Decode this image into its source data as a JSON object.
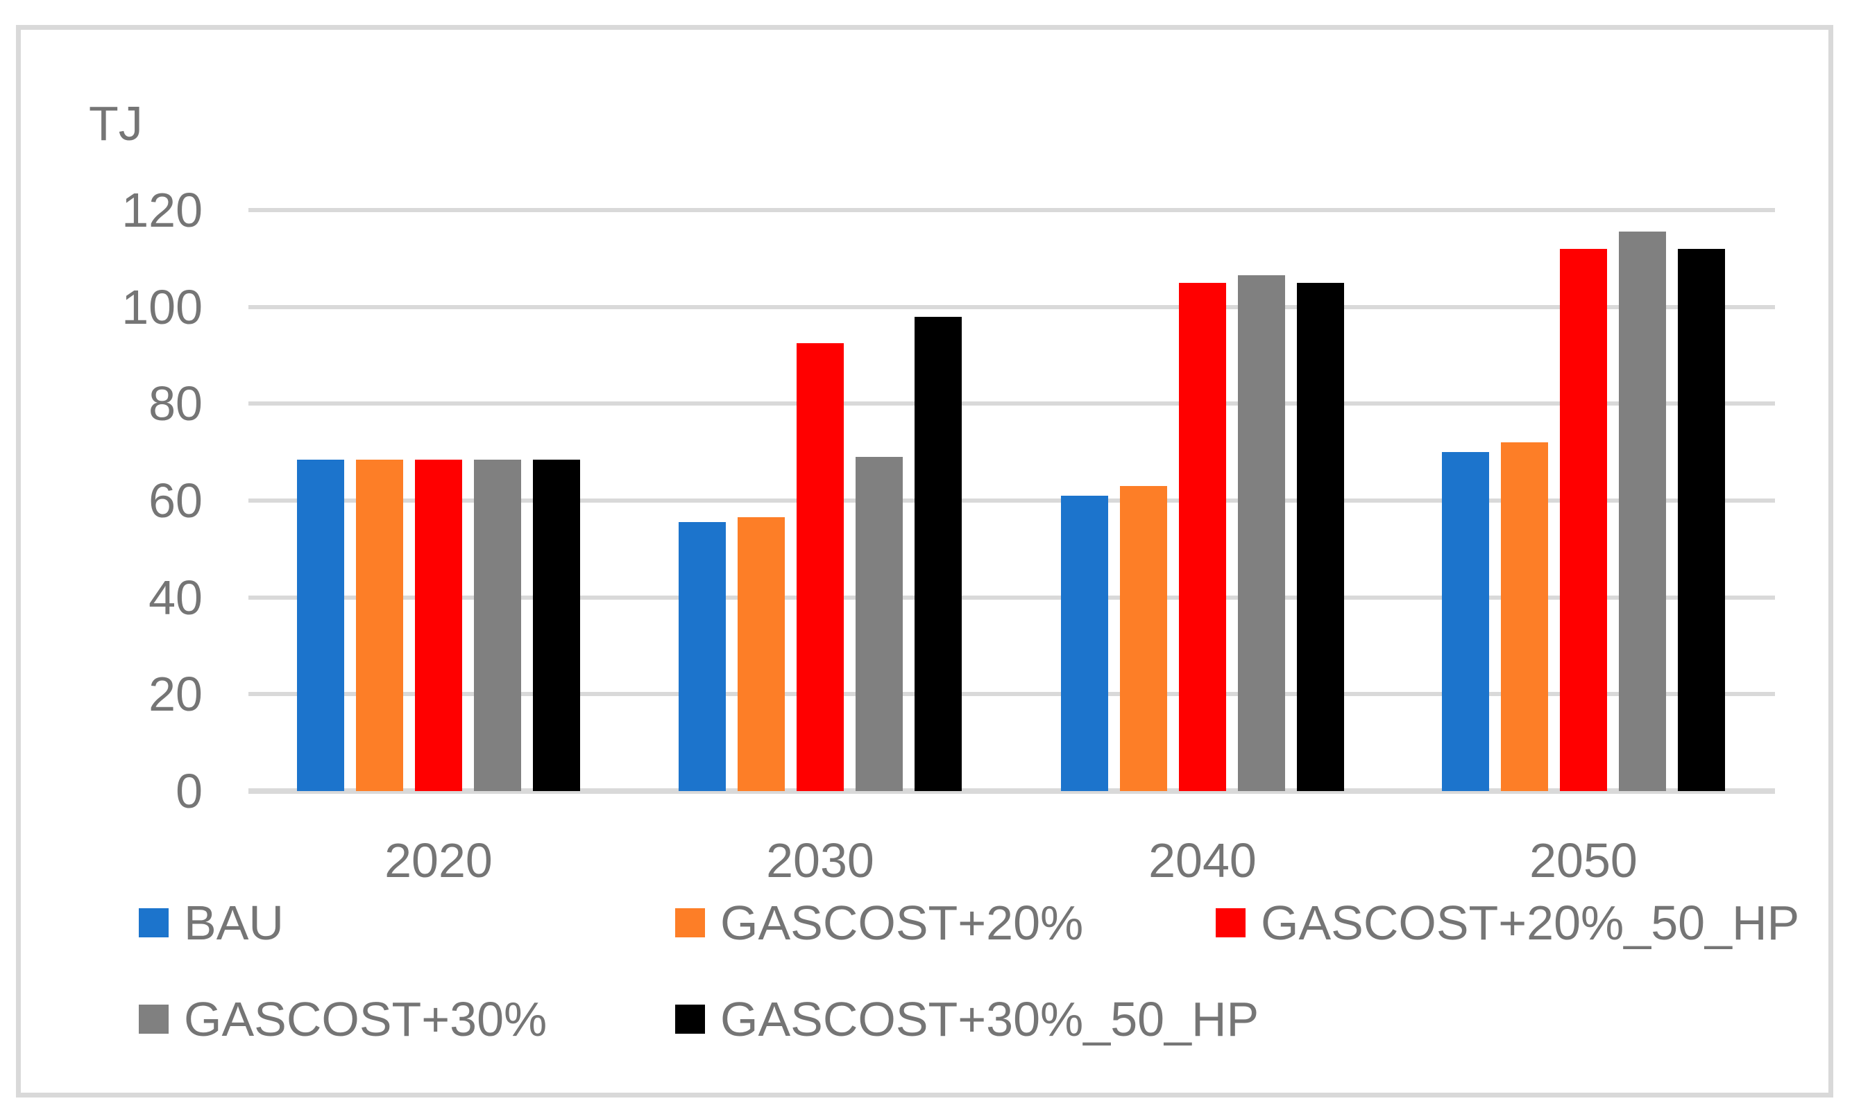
{
  "chart_data": {
    "type": "bar",
    "title": "",
    "ylabel": "TJ",
    "xlabel": "",
    "categories": [
      "2020",
      "2030",
      "2040",
      "2050"
    ],
    "series": [
      {
        "name": "BAU",
        "color": "#1C74CC",
        "values": [
          68.5,
          55.5,
          61,
          70
        ]
      },
      {
        "name": "GASCOST+20%",
        "color": "#FD7E27",
        "values": [
          68.5,
          56.5,
          63,
          72
        ]
      },
      {
        "name": "GASCOST+20%_50_HP",
        "color": "#FF0000",
        "values": [
          68.5,
          92.5,
          105,
          112
        ]
      },
      {
        "name": "GASCOST+30%",
        "color": "#808080",
        "values": [
          68.5,
          69,
          106.5,
          115.5
        ]
      },
      {
        "name": "GASCOST+30%_50_HP",
        "color": "#000000",
        "values": [
          68.5,
          98,
          105,
          112
        ]
      }
    ],
    "ylim": [
      0,
      120
    ],
    "yticks": [
      0,
      20,
      40,
      60,
      80,
      100,
      120
    ],
    "grid": true,
    "legend_position": "bottom"
  },
  "style_colors": {
    "gridline": "#D9D9D9",
    "frame_border": "#D9D9D9",
    "axis_text": "#757575"
  }
}
